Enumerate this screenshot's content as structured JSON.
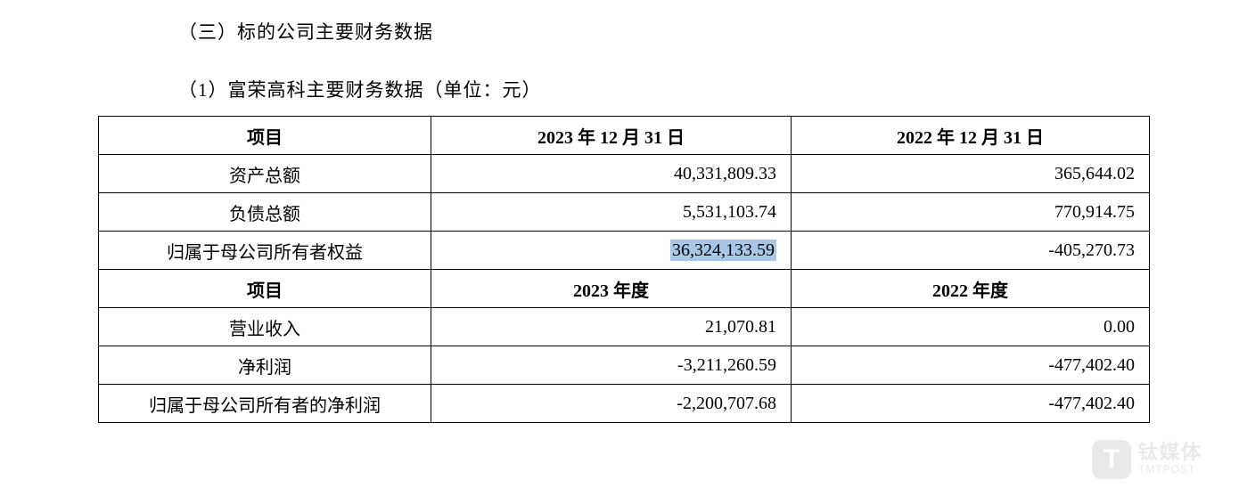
{
  "section_title": "（三）标的公司主要财务数据",
  "sub_title": "（1）富荣高科主要财务数据（单位：元）",
  "table": {
    "header1": {
      "c0": "项目",
      "c1": "2023 年 12 月 31 日",
      "c2": "2022 年 12 月 31 日"
    },
    "rows1": [
      {
        "item": "资产总额",
        "v1": "40,331,809.33",
        "v2": "365,644.02"
      },
      {
        "item": "负债总额",
        "v1": "5,531,103.74",
        "v2": "770,914.75"
      },
      {
        "item": "归属于母公司所有者权益",
        "v1": "36,324,133.59",
        "v2": "-405,270.73",
        "highlight": true
      }
    ],
    "header2": {
      "c0": "项目",
      "c1": "2023 年度",
      "c2": "2022 年度"
    },
    "rows2": [
      {
        "item": "营业收入",
        "v1": "21,070.81",
        "v2": "0.00"
      },
      {
        "item": "净利润",
        "v1": "-3,211,260.59",
        "v2": "-477,402.40"
      },
      {
        "item": "归属于母公司所有者的净利润",
        "v1": "-2,200,707.68",
        "v2": "-477,402.40"
      }
    ],
    "column_alignment": [
      "center",
      "right",
      "right"
    ],
    "border_color": "#000000",
    "header_font_weight": "bold",
    "highlight_color": "#a7c7e7"
  },
  "watermark": {
    "icon_letter": "T",
    "cn": "钛媒体",
    "en": "TMTPOST"
  }
}
